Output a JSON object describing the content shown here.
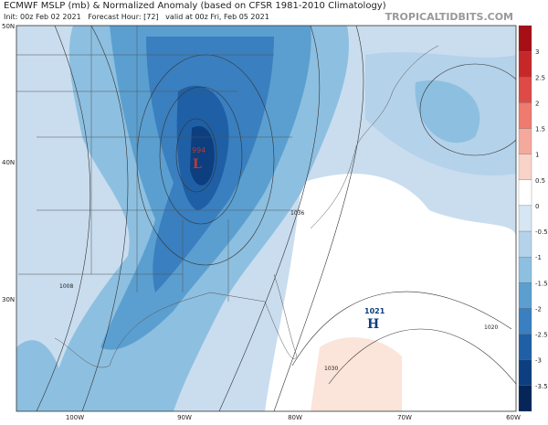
{
  "header": {
    "title": "ECMWF MSLP (mb) & Normalized Anomaly (based on CFSR 1981-2010 Climatology)",
    "subtitle": "Init: 00z Feb 02 2021   Forecast Hour: [72]   valid at 00z Fri, Feb 05 2021",
    "source": "TROPICALTIDBITS.COM"
  },
  "map": {
    "lat_labels": [
      "50N",
      "40N",
      "30N"
    ],
    "lon_labels": [
      "100W",
      "90W",
      "80W",
      "70W",
      "60W"
    ],
    "centers": [
      {
        "label": "994",
        "symbol": "L"
      },
      {
        "label": "1021",
        "symbol": "H"
      }
    ],
    "isobar_labels": [
      "1036",
      "1020",
      "1030",
      "1008"
    ]
  },
  "colorbar": {
    "labels": [
      "3",
      "2.5",
      "2",
      "1.5",
      "1",
      "0.5",
      "0",
      "-0.5",
      "-1",
      "-1.5",
      "-2",
      "-2.5",
      "-3",
      "-3.5"
    ],
    "colors": [
      "#a50f15",
      "#c6282a",
      "#de4a46",
      "#ef7a70",
      "#f5a89c",
      "#fad3c8",
      "#ffffff",
      "#d6e6f4",
      "#b4d2ea",
      "#8dbfe0",
      "#5b9fd0",
      "#3a7fbf",
      "#1f5fa5",
      "#0c3e80",
      "#062659"
    ]
  }
}
